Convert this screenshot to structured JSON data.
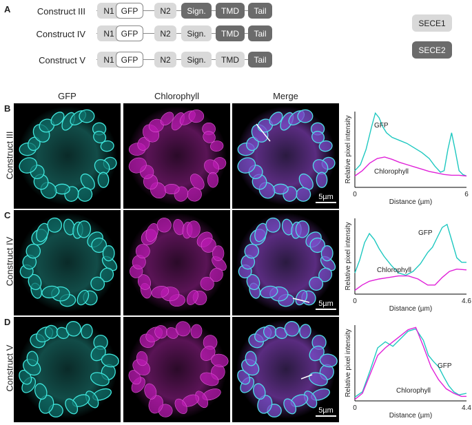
{
  "panelA": {
    "label": "A",
    "constructs": [
      {
        "name": "Construct III",
        "n1": "N1",
        "gfp": "GFP",
        "n2": "N2",
        "sign": "Sign.",
        "tmd": "TMD",
        "tail": "Tail"
      },
      {
        "name": "Construct IV",
        "n1": "N1",
        "gfp": "GFP",
        "n2": "N2",
        "sign": "Sign.",
        "tmd": "TMD",
        "tail": "Tail"
      },
      {
        "name": "Construct V",
        "n1": "N1",
        "gfp": "GFP",
        "n2": "N2",
        "sign": "Sign.",
        "tmd": "TMD",
        "tail": "Tail"
      }
    ],
    "legend": {
      "sece1": "SECE1",
      "sece2": "SECE2"
    }
  },
  "columns": {
    "gfp": "GFP",
    "chl": "Chlorophyll",
    "merge": "Merge"
  },
  "rows": [
    {
      "label": "B",
      "construct": "Construct III",
      "scale": "5µm"
    },
    {
      "label": "C",
      "construct": "Construct IV",
      "scale": "5µm"
    },
    {
      "label": "D",
      "construct": "Construct V",
      "scale": "5µm"
    }
  ],
  "colors": {
    "gfp": "#1ec8c0",
    "chl": "#e020d8",
    "light_box": "#d9d9d9",
    "dark_box": "#6b6b6b"
  },
  "chart_data": [
    {
      "type": "line",
      "ylabel": "Relative pixel intensity",
      "xlabel": "Distance (µm)",
      "xlim": [
        0,
        6
      ],
      "xticks": [
        "0",
        "6"
      ],
      "series": [
        {
          "name": "GFP",
          "x": [
            0,
            0.3,
            0.6,
            0.9,
            1.1,
            1.3,
            1.5,
            1.7,
            2.0,
            2.4,
            2.8,
            3.2,
            3.6,
            4.0,
            4.3,
            4.6,
            4.8,
            5.0,
            5.2,
            5.4,
            5.6,
            5.8,
            6.0
          ],
          "y": [
            0.22,
            0.3,
            0.5,
            0.8,
            0.98,
            0.92,
            0.8,
            0.72,
            0.66,
            0.62,
            0.58,
            0.52,
            0.46,
            0.38,
            0.28,
            0.2,
            0.22,
            0.5,
            0.72,
            0.48,
            0.22,
            0.17,
            0.15
          ]
        },
        {
          "name": "Chlorophyll",
          "x": [
            0,
            0.4,
            0.8,
            1.2,
            1.6,
            2.0,
            2.4,
            2.8,
            3.2,
            3.6,
            4.0,
            4.4,
            4.8,
            5.2,
            5.6,
            6.0
          ],
          "y": [
            0.15,
            0.22,
            0.32,
            0.38,
            0.4,
            0.37,
            0.33,
            0.3,
            0.27,
            0.24,
            0.21,
            0.19,
            0.17,
            0.16,
            0.16,
            0.15
          ]
        }
      ]
    },
    {
      "type": "line",
      "ylabel": "Relative pixel intensity",
      "xlabel": "Distance (µm)",
      "xlim": [
        0,
        4.6
      ],
      "xticks": [
        "0",
        "4.6"
      ],
      "series": [
        {
          "name": "GFP",
          "x": [
            0,
            0.2,
            0.4,
            0.6,
            0.8,
            1.0,
            1.2,
            1.5,
            1.8,
            2.1,
            2.4,
            2.7,
            3.0,
            3.2,
            3.4,
            3.6,
            3.8,
            4.0,
            4.2,
            4.4,
            4.6
          ],
          "y": [
            0.28,
            0.45,
            0.68,
            0.8,
            0.72,
            0.6,
            0.5,
            0.38,
            0.28,
            0.25,
            0.3,
            0.4,
            0.55,
            0.62,
            0.75,
            0.88,
            0.92,
            0.7,
            0.48,
            0.42,
            0.42
          ]
        },
        {
          "name": "Chlorophyll",
          "x": [
            0,
            0.3,
            0.6,
            1.0,
            1.4,
            1.8,
            2.2,
            2.6,
            3.0,
            3.3,
            3.6,
            3.9,
            4.2,
            4.6
          ],
          "y": [
            0.05,
            0.12,
            0.17,
            0.2,
            0.22,
            0.24,
            0.24,
            0.2,
            0.12,
            0.12,
            0.22,
            0.3,
            0.33,
            0.32
          ]
        }
      ]
    },
    {
      "type": "line",
      "ylabel": "Relative pixel intensity",
      "xlabel": "Distance (µm)",
      "xlim": [
        0,
        4.4
      ],
      "xticks": [
        "0",
        "4.4"
      ],
      "series": [
        {
          "name": "GFP",
          "x": [
            0,
            0.3,
            0.6,
            0.9,
            1.2,
            1.5,
            1.8,
            2.1,
            2.4,
            2.7,
            2.9,
            3.1,
            3.3,
            3.5,
            3.7,
            3.9,
            4.1,
            4.4
          ],
          "y": [
            0.05,
            0.12,
            0.4,
            0.7,
            0.78,
            0.72,
            0.82,
            0.92,
            0.95,
            0.8,
            0.6,
            0.52,
            0.45,
            0.32,
            0.2,
            0.12,
            0.08,
            0.1
          ]
        },
        {
          "name": "Chlorophyll",
          "x": [
            0,
            0.3,
            0.6,
            0.9,
            1.2,
            1.5,
            1.8,
            2.1,
            2.4,
            2.7,
            3.0,
            3.3,
            3.6,
            3.9,
            4.2,
            4.4
          ],
          "y": [
            0.02,
            0.1,
            0.35,
            0.6,
            0.7,
            0.78,
            0.86,
            0.94,
            0.97,
            0.72,
            0.45,
            0.28,
            0.16,
            0.1,
            0.06,
            0.06
          ]
        }
      ]
    }
  ]
}
